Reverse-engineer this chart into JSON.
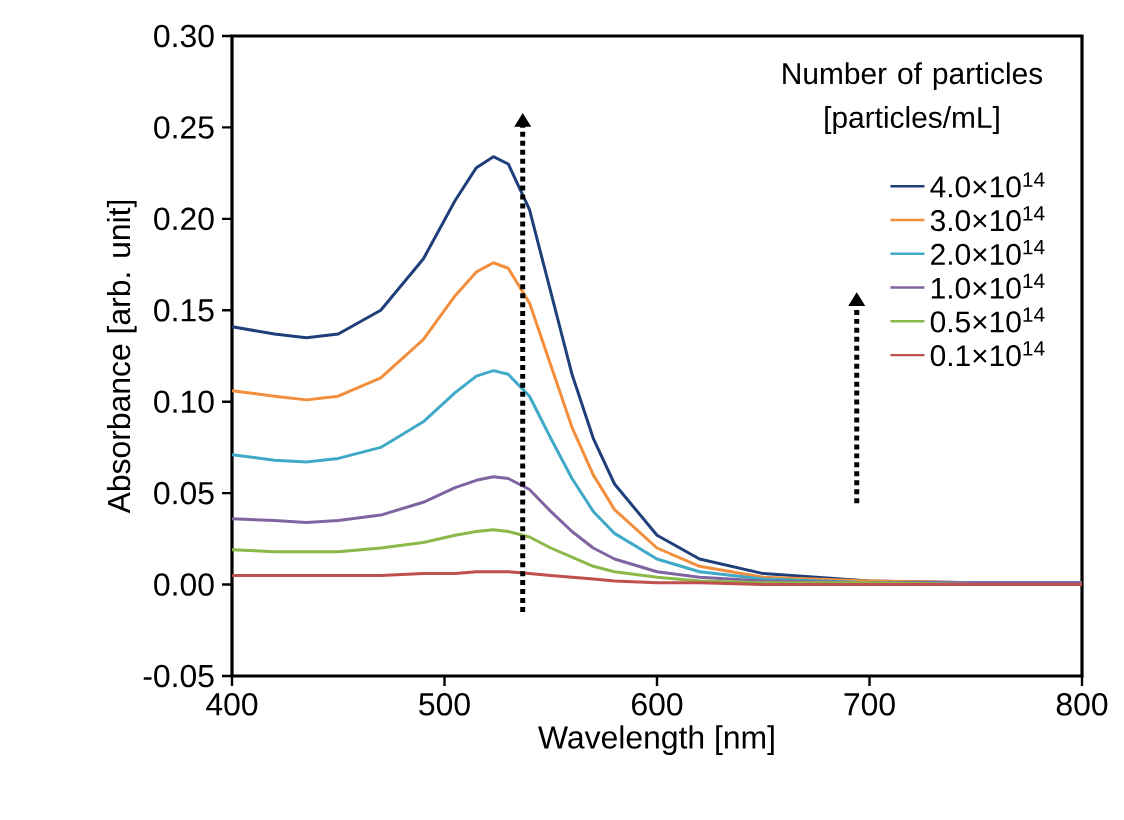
{
  "chart_data": {
    "type": "line",
    "xlabel": "Wavelength [nm]",
    "ylabel": "Absorbance [arb. unit]",
    "legend_title": "Number of particles [particles/mL]",
    "legend": "top right",
    "x": [
      400,
      420,
      435,
      450,
      470,
      490,
      505,
      515,
      523,
      530,
      540,
      550,
      560,
      570,
      580,
      600,
      620,
      650,
      700,
      750,
      800
    ],
    "xlim": [
      400,
      800
    ],
    "xticks": [
      400,
      500,
      600,
      700,
      800
    ],
    "ylim": [
      -0.05,
      0.3
    ],
    "yticks": [
      {
        "value": -0.05,
        "label": "-0.05"
      },
      {
        "value": 0,
        "label": "0.00"
      },
      {
        "value": 0.05,
        "label": "0.05"
      },
      {
        "value": 0.1,
        "label": "0.10"
      },
      {
        "value": 0.15,
        "label": "0.15"
      },
      {
        "value": 0.2,
        "label": "0.20"
      },
      {
        "value": 0.25,
        "label": "0.25"
      },
      {
        "value": 0.3,
        "label": "0.30"
      }
    ],
    "grid": false,
    "marker": "none",
    "line_style": "solid",
    "series": [
      {
        "name": "4.0×10$^{14}$",
        "color": "#1f3f7a",
        "values": [
          0.141,
          0.137,
          0.135,
          0.137,
          0.15,
          0.178,
          0.21,
          0.228,
          0.234,
          0.23,
          0.205,
          0.16,
          0.115,
          0.08,
          0.055,
          0.027,
          0.014,
          0.006,
          0.002,
          0.001,
          0.001
        ]
      },
      {
        "name": "3.0×10$^{14}$",
        "color": "#f28e3c",
        "values": [
          0.106,
          0.103,
          0.101,
          0.103,
          0.113,
          0.134,
          0.158,
          0.171,
          0.176,
          0.173,
          0.154,
          0.12,
          0.086,
          0.06,
          0.041,
          0.02,
          0.01,
          0.004,
          0.002,
          0.001,
          0.001
        ]
      },
      {
        "name": "2.0×10$^{14}$",
        "color": "#41a9c8",
        "values": [
          0.071,
          0.068,
          0.067,
          0.069,
          0.075,
          0.089,
          0.105,
          0.114,
          0.117,
          0.115,
          0.103,
          0.08,
          0.058,
          0.04,
          0.028,
          0.014,
          0.007,
          0.003,
          0.001,
          0.001,
          0.001
        ]
      },
      {
        "name": "1.0×10$^{14}$",
        "color": "#8064a2",
        "values": [
          0.036,
          0.035,
          0.034,
          0.035,
          0.038,
          0.045,
          0.053,
          0.057,
          0.059,
          0.058,
          0.052,
          0.04,
          0.029,
          0.02,
          0.014,
          0.007,
          0.004,
          0.002,
          0.001,
          0.001,
          0.001
        ]
      },
      {
        "name": "0.5×10$^{14}$",
        "color": "#8cb84a",
        "values": [
          0.019,
          0.018,
          0.018,
          0.018,
          0.02,
          0.023,
          0.027,
          0.029,
          0.03,
          0.029,
          0.026,
          0.02,
          0.015,
          0.01,
          0.007,
          0.004,
          0.002,
          0.001,
          0.001,
          0.0,
          0.0
        ]
      },
      {
        "name": "0.1×10$^{14}$",
        "color": "#c0504d",
        "values": [
          0.005,
          0.005,
          0.005,
          0.005,
          0.005,
          0.006,
          0.006,
          0.007,
          0.007,
          0.007,
          0.006,
          0.005,
          0.004,
          0.003,
          0.002,
          0.001,
          0.001,
          0.0,
          0.0,
          0.0,
          0.0
        ]
      }
    ]
  }
}
